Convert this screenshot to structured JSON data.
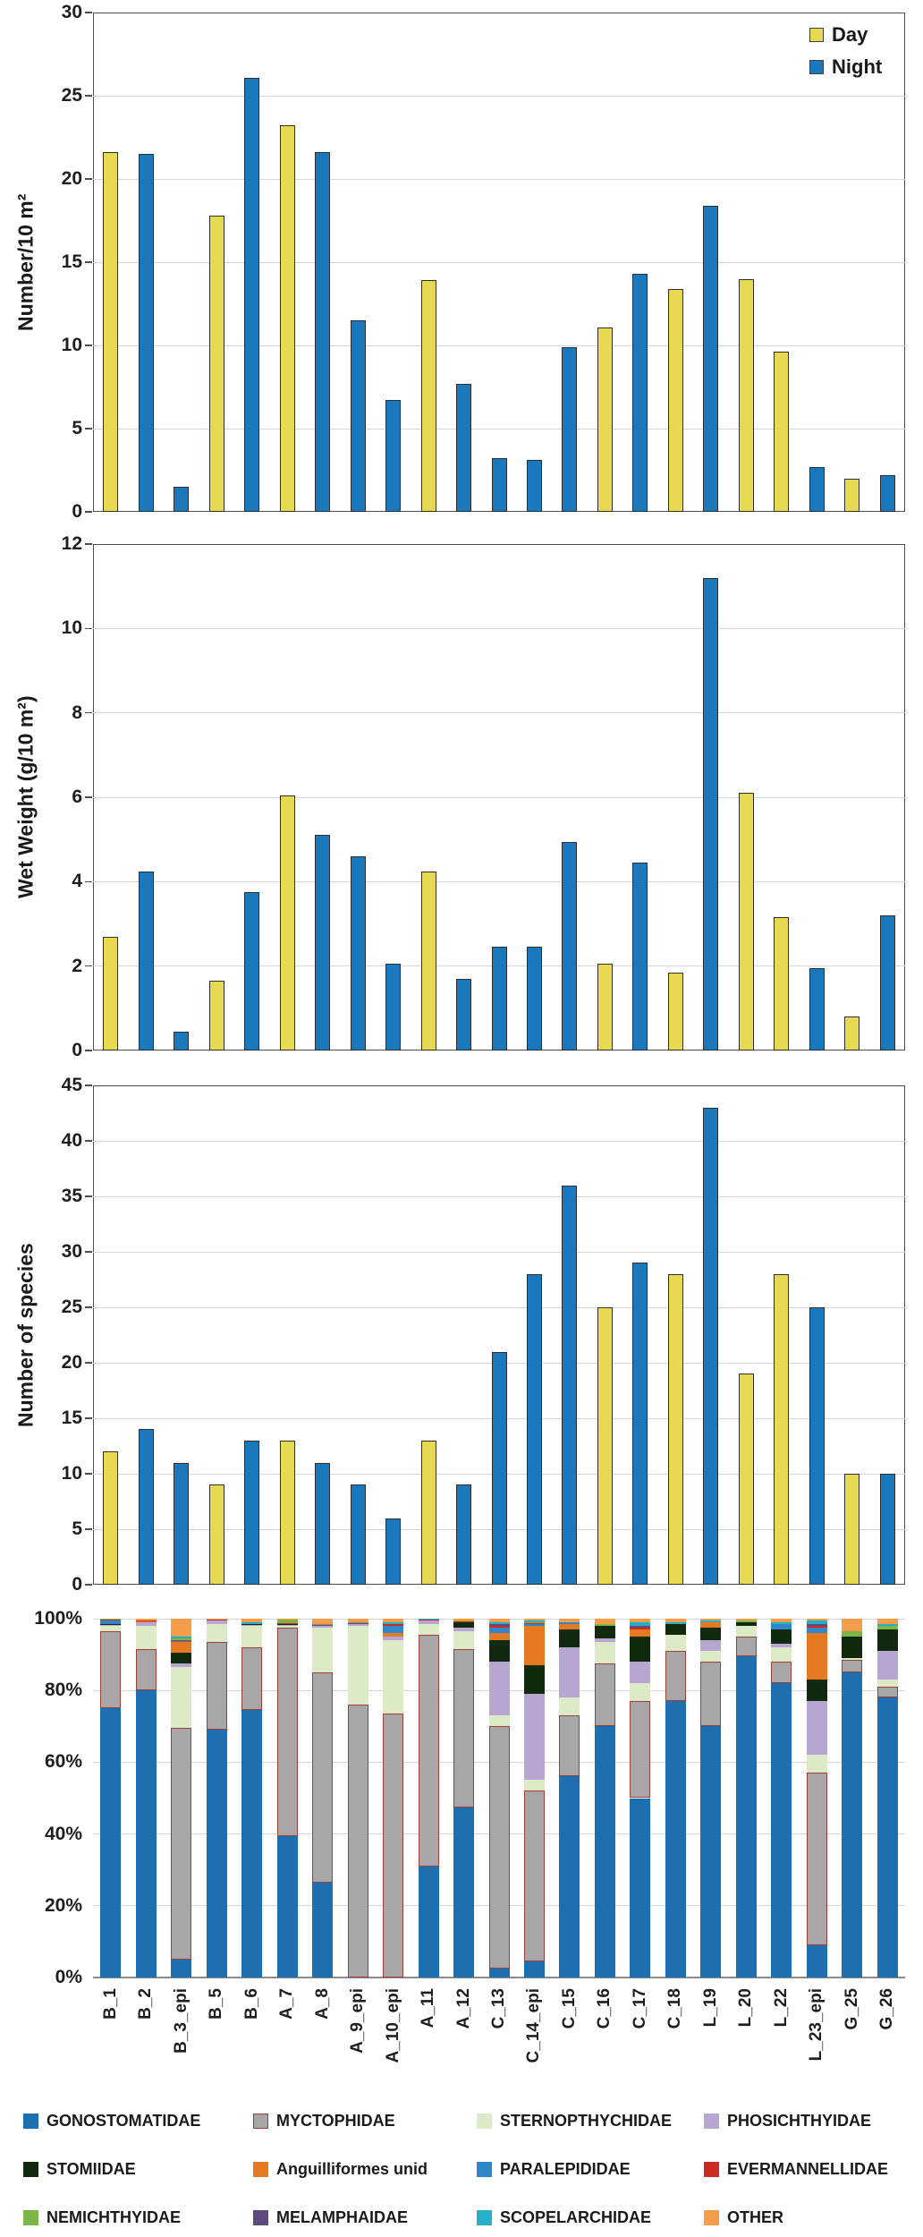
{
  "day_night_legend": {
    "day_label": "Day",
    "night_label": "Night"
  },
  "colors": {
    "day": "#e8d952",
    "night": "#1b78bd",
    "bar_border": "#2e2e2e",
    "gridline": "#d6d6d6",
    "axis": "#4d4d4d"
  },
  "stations": [
    "B_1",
    "B_2",
    "B_3_epi",
    "B_5",
    "B_6",
    "A_7",
    "A_8",
    "A_9_epi",
    "A_10_epi",
    "A_11",
    "A_12",
    "C_13",
    "C_14_epi",
    "C_15",
    "C_16",
    "C_17",
    "C_18",
    "L_19",
    "L_20",
    "L_22",
    "L_23_epi",
    "G_25",
    "G_26"
  ],
  "day_flags": [
    1,
    0,
    0,
    1,
    0,
    1,
    0,
    0,
    0,
    1,
    0,
    0,
    0,
    0,
    1,
    0,
    1,
    0,
    1,
    1,
    0,
    1,
    0
  ],
  "chart_data": [
    {
      "type": "bar",
      "ylabel": "Number/10 m²",
      "ylim": [
        0,
        30
      ],
      "ytick_step": 5,
      "grid": true,
      "legend_position": "top-right-inside",
      "categories": [
        "B_1",
        "B_2",
        "B_3_epi",
        "B_5",
        "B_6",
        "A_7",
        "A_8",
        "A_9_epi",
        "A_10_epi",
        "A_11",
        "A_12",
        "C_13",
        "C_14_epi",
        "C_15",
        "C_16",
        "C_17",
        "C_18",
        "L_19",
        "L_20",
        "L_22",
        "L_23_epi",
        "G_25",
        "G_26"
      ],
      "series": [
        {
          "name": "Day/Night combined",
          "values": [
            21.6,
            21.5,
            1.5,
            17.8,
            26.1,
            23.2,
            21.6,
            11.5,
            6.7,
            13.9,
            7.7,
            3.2,
            3.1,
            9.9,
            11.1,
            14.3,
            13.4,
            18.4,
            14.0,
            9.6,
            2.7,
            2.0,
            2.2
          ]
        }
      ]
    },
    {
      "type": "bar",
      "ylabel": "Wet Weight (g/10 m²)",
      "ylim": [
        0,
        12
      ],
      "ytick_step": 2,
      "grid": true,
      "categories": [
        "B_1",
        "B_2",
        "B_3_epi",
        "B_5",
        "B_6",
        "A_7",
        "A_8",
        "A_9_epi",
        "A_10_epi",
        "A_11",
        "A_12",
        "C_13",
        "C_14_epi",
        "C_15",
        "C_16",
        "C_17",
        "C_18",
        "L_19",
        "L_20",
        "L_22",
        "L_23_epi",
        "G_25",
        "G_26"
      ],
      "series": [
        {
          "name": "Day/Night combined",
          "values": [
            2.7,
            4.25,
            0.45,
            1.65,
            3.75,
            6.05,
            5.1,
            4.6,
            2.05,
            4.25,
            1.7,
            2.45,
            2.45,
            4.95,
            2.05,
            4.45,
            1.85,
            11.2,
            6.1,
            3.15,
            1.95,
            0.8,
            3.2
          ]
        }
      ]
    },
    {
      "type": "bar",
      "ylabel": "Number of species",
      "ylim": [
        0,
        45
      ],
      "ytick_step": 5,
      "grid": true,
      "categories": [
        "B_1",
        "B_2",
        "B_3_epi",
        "B_5",
        "B_6",
        "A_7",
        "A_8",
        "A_9_epi",
        "A_10_epi",
        "A_11",
        "A_12",
        "C_13",
        "C_14_epi",
        "C_15",
        "C_16",
        "C_17",
        "C_18",
        "L_19",
        "L_20",
        "L_22",
        "L_23_epi",
        "G_25",
        "G_26"
      ],
      "series": [
        {
          "name": "Day/Night combined",
          "values": [
            12,
            14,
            11,
            9,
            13,
            13,
            11,
            9,
            6,
            13,
            9,
            21,
            28,
            36,
            25,
            29,
            28,
            43,
            19,
            28,
            25,
            10,
            10
          ]
        }
      ]
    },
    {
      "type": "stacked_bar_percent",
      "ylabel": "",
      "ylim": [
        0,
        100
      ],
      "ytick_labels": [
        "0%",
        "20%",
        "40%",
        "60%",
        "80%",
        "100%"
      ],
      "grid": true,
      "legend_position": "bottom",
      "categories": [
        "B_1",
        "B_2",
        "B_3_epi",
        "B_5",
        "B_6",
        "A_7",
        "A_8",
        "A_9_epi",
        "A_10_epi",
        "A_11",
        "A_12",
        "C_13",
        "C_14_epi",
        "C_15",
        "C_16",
        "C_17",
        "C_18",
        "L_19",
        "L_20",
        "L_22",
        "L_23_epi",
        "G_25",
        "G_26"
      ],
      "families": [
        {
          "name": "GONOSTOMATIDAE",
          "color": "#1d6fb0",
          "border": "#1d6fb0"
        },
        {
          "name": "MYCTOPHIDAE",
          "color": "#a8a6a7",
          "border": "#9c3f38"
        },
        {
          "name": "STERNOPTHYCHIDAE",
          "color": "#dcebc5",
          "border": "#dcebc5"
        },
        {
          "name": "PHOSICHTHYIDAE",
          "color": "#b6a6d1",
          "border": "#b6a6d1"
        },
        {
          "name": "STOMIIDAE",
          "color": "#10290f",
          "border": "#10290f"
        },
        {
          "name": "Anguilliformes unid",
          "color": "#e67a22",
          "border": "#e67a22"
        },
        {
          "name": "PARALEPIDIDAE",
          "color": "#2f86c8",
          "border": "#2f86c8"
        },
        {
          "name": "EVERMANNELLIDAE",
          "color": "#cc2a23",
          "border": "#cc2a23"
        },
        {
          "name": "NEMICHTHYIDAE",
          "color": "#7cb548",
          "border": "#7cb548"
        },
        {
          "name": "MELAMPHAIDAE",
          "color": "#5c4a80",
          "border": "#5c4a80"
        },
        {
          "name": "SCOPELARCHIDAE",
          "color": "#25b0c8",
          "border": "#25b0c8"
        },
        {
          "name": "OTHER",
          "color": "#f59d4a",
          "border": "#f59d4a"
        }
      ],
      "values_percent": [
        [
          75,
          21.5,
          1.5,
          0.3,
          0.2,
          0,
          1,
          0.2,
          0.3,
          0,
          0,
          0
        ],
        [
          80,
          11.5,
          6.5,
          1,
          0,
          0.3,
          0,
          0.2,
          0,
          0,
          0,
          0.5
        ],
        [
          5,
          64.5,
          17,
          1,
          3,
          3,
          0.3,
          0.2,
          0.5,
          0,
          0.5,
          5
        ],
        [
          69,
          24.5,
          5,
          1,
          0,
          0,
          0,
          0.2,
          0,
          0,
          0,
          0.3
        ],
        [
          74.5,
          17.5,
          6,
          0.3,
          0.2,
          0,
          0,
          0,
          0,
          0,
          0.5,
          1
        ],
        [
          39.5,
          58,
          0.5,
          0.3,
          0.2,
          0,
          0,
          0.2,
          1,
          0,
          0,
          0.3
        ],
        [
          26.5,
          58.5,
          12.5,
          0.5,
          0,
          0,
          0,
          0.2,
          0,
          0,
          0.3,
          1.5
        ],
        [
          0,
          76,
          22,
          0.5,
          0,
          0,
          0,
          0.2,
          0,
          0,
          0.3,
          1
        ],
        [
          0,
          73.5,
          20.5,
          1,
          0,
          1,
          2,
          0.5,
          0,
          0,
          0.5,
          1
        ],
        [
          31,
          64.5,
          3,
          1,
          0,
          0,
          0,
          0.2,
          0,
          0,
          0.3,
          0
        ],
        [
          47.5,
          44,
          5,
          1,
          1.5,
          0,
          0,
          0.2,
          0.3,
          0,
          0,
          0.5
        ],
        [
          2.5,
          67.5,
          3,
          15,
          6,
          2,
          1.5,
          0.5,
          0,
          0.5,
          0.5,
          1
        ],
        [
          4.5,
          47.5,
          3,
          24,
          8,
          11,
          0.5,
          0.3,
          0.2,
          0,
          0.5,
          0.5
        ],
        [
          56,
          17,
          5,
          14,
          5,
          1.5,
          0.5,
          0,
          0,
          0,
          0,
          1
        ],
        [
          70,
          17.5,
          6,
          1,
          3.5,
          0,
          0,
          0,
          0.5,
          0,
          0,
          1.5
        ],
        [
          50,
          27,
          5,
          6,
          7,
          2,
          0,
          0.5,
          0,
          0.5,
          1,
          1
        ],
        [
          77,
          14,
          4.5,
          0,
          3,
          0,
          0,
          0,
          0,
          0,
          0.5,
          1
        ],
        [
          70,
          18,
          3,
          3,
          3.5,
          1.5,
          0,
          0,
          0,
          0,
          0.5,
          0.5
        ],
        [
          89.5,
          5.5,
          3,
          0,
          1,
          0,
          0,
          0,
          0.5,
          0,
          0,
          0.5
        ],
        [
          82,
          6,
          4,
          1,
          4,
          0,
          1.5,
          0,
          0,
          0,
          0.5,
          1
        ],
        [
          9,
          48,
          5,
          15,
          6,
          13,
          1.5,
          0.5,
          0,
          0.5,
          1,
          0.5
        ],
        [
          85,
          3.5,
          0.5,
          0,
          6,
          0,
          0,
          0,
          1.5,
          0,
          0,
          3.5
        ],
        [
          78,
          3,
          2,
          8,
          6,
          0,
          0,
          0,
          1,
          0,
          0.5,
          1.5
        ]
      ]
    }
  ],
  "bottom_legend": {
    "items": [
      "GONOSTOMATIDAE",
      "MYCTOPHIDAE",
      "STERNOPTHYCHIDAE",
      "PHOSICHTHYIDAE",
      "STOMIIDAE",
      "Anguilliformes unid",
      "PARALEPIDIDAE",
      "EVERMANNELLIDAE",
      "NEMICHTHYIDAE",
      "MELAMPHAIDAE",
      "SCOPELARCHIDAE",
      "OTHER"
    ]
  }
}
